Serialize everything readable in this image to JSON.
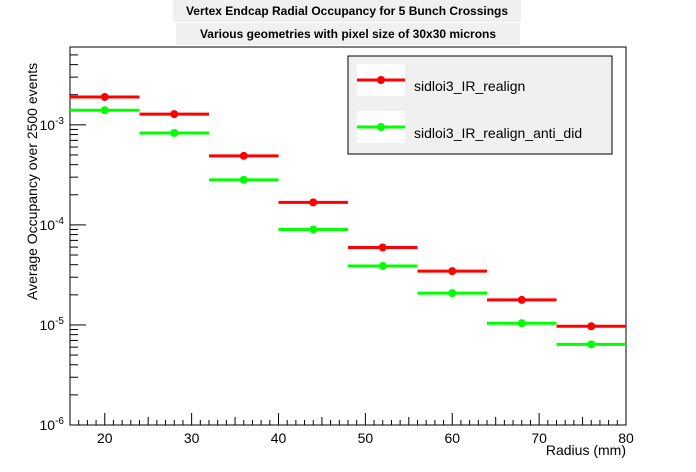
{
  "chart_data": {
    "type": "scatter",
    "title": "Vertex Endcap Radial Occupancy for 5 Bunch Crossings",
    "subtitle": "Various geometries with pixel size of 30x30 microns",
    "xlabel": "Radius (mm)",
    "ylabel": "Average Occupancy over 2500 events",
    "xlim": [
      16,
      80
    ],
    "ylim": [
      1e-06,
      0.006
    ],
    "yscale": "log",
    "x_ticks": [
      "20",
      "30",
      "40",
      "50",
      "60",
      "70",
      "80"
    ],
    "y_ticks": [
      {
        "base": "10",
        "exp": "-6",
        "value": 1e-06
      },
      {
        "base": "10",
        "exp": "-5",
        "value": 1e-05
      },
      {
        "base": "10",
        "exp": "-4",
        "value": 0.0001
      },
      {
        "base": "10",
        "exp": "-3",
        "value": 0.001
      }
    ],
    "grid": false,
    "legend_position": "top-right",
    "series": [
      {
        "name": "sidloi3_IR_realign",
        "color": "#ff0000",
        "points": [
          {
            "x": 20,
            "xlow": 16,
            "xhigh": 24,
            "y": 0.0019
          },
          {
            "x": 28,
            "xlow": 24,
            "xhigh": 32,
            "y": 0.00128
          },
          {
            "x": 36,
            "xlow": 32,
            "xhigh": 40,
            "y": 0.00049
          },
          {
            "x": 44,
            "xlow": 40,
            "xhigh": 48,
            "y": 0.000168
          },
          {
            "x": 52,
            "xlow": 48,
            "xhigh": 56,
            "y": 5.95e-05
          },
          {
            "x": 60,
            "xlow": 56,
            "xhigh": 64,
            "y": 3.45e-05
          },
          {
            "x": 68,
            "xlow": 64,
            "xhigh": 72,
            "y": 1.78e-05
          },
          {
            "x": 76,
            "xlow": 72,
            "xhigh": 80,
            "y": 9.7e-06
          }
        ]
      },
      {
        "name": "sidloi3_IR_realign_anti_did",
        "color": "#00ff00",
        "points": [
          {
            "x": 20,
            "xlow": 16,
            "xhigh": 24,
            "y": 0.0014
          },
          {
            "x": 28,
            "xlow": 24,
            "xhigh": 32,
            "y": 0.00083
          },
          {
            "x": 36,
            "xlow": 32,
            "xhigh": 40,
            "y": 0.000282
          },
          {
            "x": 44,
            "xlow": 40,
            "xhigh": 48,
            "y": 9e-05
          },
          {
            "x": 52,
            "xlow": 48,
            "xhigh": 56,
            "y": 3.88e-05
          },
          {
            "x": 60,
            "xlow": 56,
            "xhigh": 64,
            "y": 2.08e-05
          },
          {
            "x": 68,
            "xlow": 64,
            "xhigh": 72,
            "y": 1.04e-05
          },
          {
            "x": 76,
            "xlow": 72,
            "xhigh": 80,
            "y": 6.4e-06
          }
        ]
      }
    ]
  }
}
